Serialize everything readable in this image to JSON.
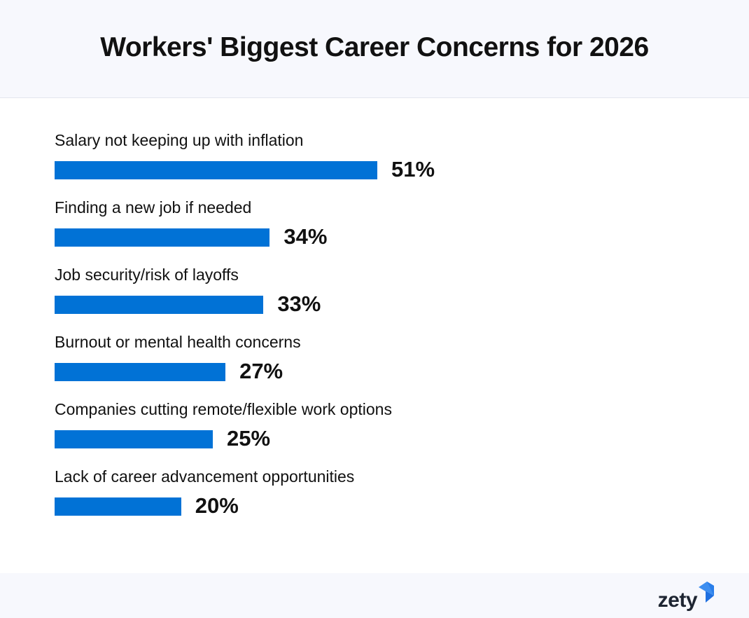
{
  "header": {
    "title": "Workers' Biggest Career Concerns for 2026"
  },
  "colors": {
    "bar": "#0172d6",
    "header_bg": "#f7f8fd",
    "text": "#111111"
  },
  "chart_data": {
    "type": "bar",
    "orientation": "horizontal",
    "title": "Workers' Biggest Career Concerns for 2026",
    "xlabel": "",
    "ylabel": "",
    "unit": "%",
    "categories": [
      "Salary not keeping up with inflation",
      "Finding a new job if needed",
      "Job security/risk of layoffs",
      "Burnout or mental health concerns",
      "Companies cutting remote/flexible work options",
      "Lack of career advancement opportunities"
    ],
    "values": [
      51,
      34,
      33,
      27,
      25,
      20
    ],
    "value_labels": [
      "51%",
      "34%",
      "33%",
      "27%",
      "25%",
      "20%"
    ],
    "grid": false,
    "legend": null
  },
  "footer": {
    "brand": "zety",
    "brand_icon": "zety-logo-mark-icon"
  }
}
